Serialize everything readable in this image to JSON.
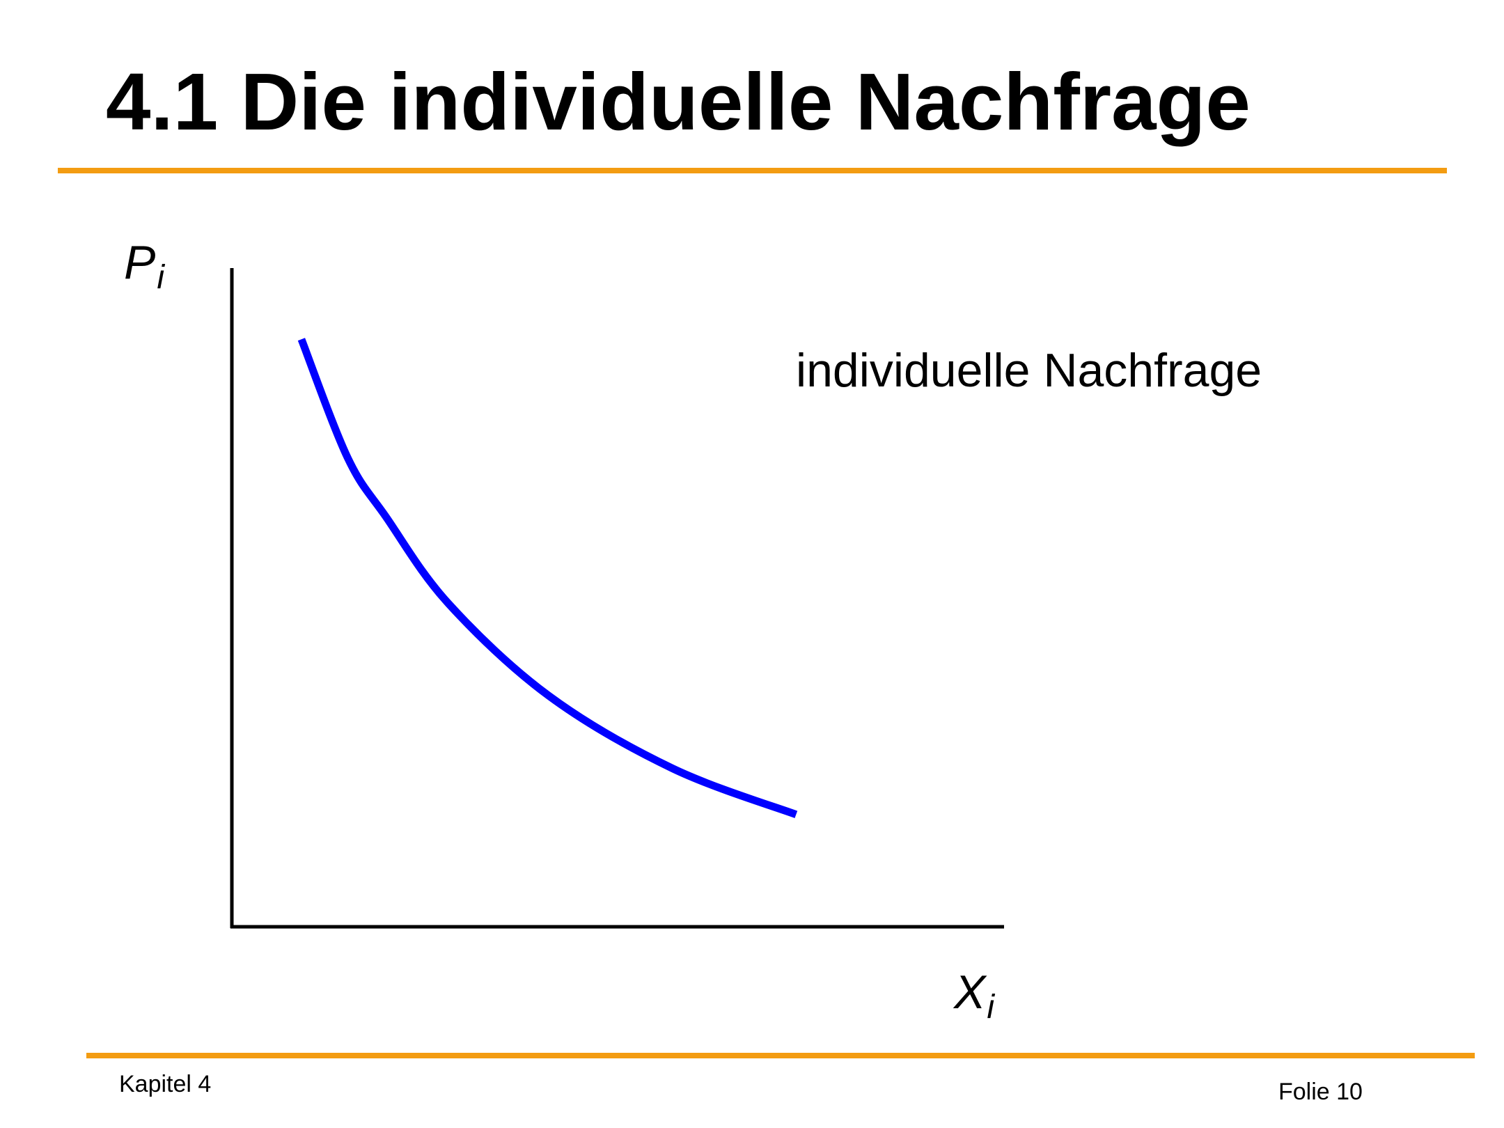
{
  "slide": {
    "title": "4.1 Die individuelle Nachfrage",
    "footer_left": "Kapitel 4",
    "footer_right": "Folie 10"
  },
  "colors": {
    "accent": "#f39c12",
    "curve": "#0000ff",
    "axes": "#000000"
  },
  "chart_data": {
    "type": "line",
    "title": "",
    "xlabel": "X",
    "xlabel_sub": "i",
    "ylabel": "P",
    "ylabel_sub": "i",
    "grid": false,
    "xlim": [
      0,
      100
    ],
    "ylim": [
      0,
      100
    ],
    "series": [
      {
        "name": "individuelle Nachfrage",
        "x": [
          9,
          15,
          20,
          28,
          41,
          57,
          73
        ],
        "y": [
          89,
          71,
          62,
          49,
          35,
          24,
          17
        ]
      }
    ]
  }
}
